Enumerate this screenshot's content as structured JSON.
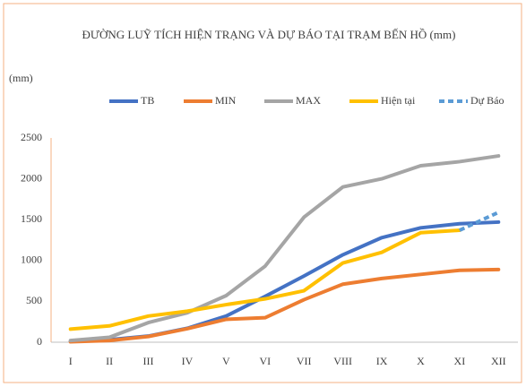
{
  "chart_data": {
    "type": "line",
    "title": "ĐƯỜNG LUỸ TÍCH HIỆN TRẠNG VÀ DỰ BÁO TẠI TRẠM BẾN HỒ (mm)",
    "y_label": "(mm)",
    "categories": [
      "I",
      "II",
      "III",
      "IV",
      "V",
      "VI",
      "VII",
      "VIII",
      "IX",
      "X",
      "XI",
      "XII"
    ],
    "series": [
      {
        "name": "TB",
        "color": "#4472c4",
        "values": [
          10,
          30,
          75,
          170,
          320,
          560,
          810,
          1070,
          1280,
          1400,
          1450,
          1470
        ]
      },
      {
        "name": "MIN",
        "color": "#ed7d31",
        "values": [
          5,
          20,
          70,
          165,
          280,
          300,
          520,
          710,
          780,
          830,
          880,
          890
        ]
      },
      {
        "name": "MAX",
        "color": "#a5a5a5",
        "values": [
          20,
          60,
          240,
          360,
          570,
          930,
          1530,
          1900,
          2000,
          2160,
          2210,
          2280
        ]
      },
      {
        "name": "Hiện tại",
        "color": "#ffc000",
        "values": [
          160,
          200,
          320,
          380,
          460,
          530,
          630,
          970,
          1100,
          1340,
          1370,
          null
        ]
      },
      {
        "name": "Dự Báo",
        "color": "#5b9bd5",
        "dashed": true,
        "values": [
          null,
          null,
          null,
          null,
          null,
          null,
          null,
          null,
          null,
          null,
          1370,
          1590
        ]
      }
    ],
    "ylim": [
      0,
      2500
    ],
    "yticks": [
      0,
      500,
      1000,
      1500,
      2000,
      2500
    ],
    "grid": false
  }
}
